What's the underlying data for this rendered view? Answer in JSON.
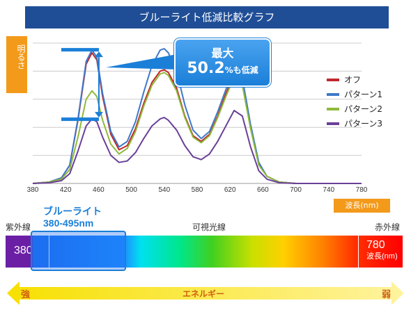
{
  "title": "ブルーライト低減比較グラフ",
  "yaxis_label": "明るさ",
  "callout": {
    "line1": "最大",
    "value": "50.2",
    "suffix": "%も低減"
  },
  "xunit": "波長(nm)",
  "spectrum": {
    "left_label": "紫外線",
    "mid_label": "可視光線",
    "right_label": "赤外線",
    "start": "380",
    "end": "780",
    "end_unit": "波長(nm)",
    "blue_title_1": "ブルーライト",
    "blue_title_2": "380-495nm"
  },
  "energy": {
    "strong": "強",
    "label": "エネルギー",
    "weak": "弱"
  },
  "colors": {
    "title_bg": "#1f4e96",
    "accent": "#f39a1b",
    "callout": "#1b7fd8"
  },
  "chart_data": {
    "type": "line",
    "title": "ブルーライト低減比較グラフ",
    "xlabel": "波長(nm)",
    "ylabel": "明るさ",
    "xlim": [
      380,
      780
    ],
    "ylim": [
      0,
      1
    ],
    "grid": true,
    "legend_placement": "right",
    "x_ticks": [
      380,
      420,
      460,
      500,
      540,
      580,
      620,
      660,
      700,
      740,
      780
    ],
    "series": [
      {
        "name": "オフ",
        "color": "#c0282d",
        "x": [
          380,
          400,
          415,
          425,
          435,
          445,
          452,
          458,
          465,
          475,
          485,
          495,
          505,
          515,
          525,
          535,
          540,
          545,
          555,
          565,
          575,
          585,
          595,
          605,
          615,
          625,
          635,
          645,
          655,
          665,
          680,
          700,
          720,
          740,
          760,
          780
        ],
        "y": [
          0,
          0.01,
          0.04,
          0.13,
          0.45,
          0.85,
          0.93,
          0.88,
          0.62,
          0.35,
          0.24,
          0.27,
          0.39,
          0.57,
          0.72,
          0.8,
          0.81,
          0.79,
          0.68,
          0.48,
          0.34,
          0.3,
          0.35,
          0.48,
          0.64,
          0.78,
          0.72,
          0.4,
          0.14,
          0.05,
          0.01,
          0,
          0,
          0,
          0,
          0
        ]
      },
      {
        "name": "パターン1",
        "color": "#3f78c8",
        "x": [
          380,
          400,
          415,
          425,
          435,
          445,
          452,
          458,
          465,
          475,
          485,
          495,
          505,
          515,
          525,
          535,
          540,
          545,
          555,
          565,
          575,
          585,
          595,
          605,
          615,
          625,
          635,
          645,
          655,
          665,
          680,
          700,
          720,
          740,
          760,
          780
        ],
        "y": [
          0,
          0.01,
          0.04,
          0.13,
          0.46,
          0.87,
          0.95,
          0.9,
          0.64,
          0.37,
          0.26,
          0.3,
          0.44,
          0.65,
          0.84,
          0.95,
          0.96,
          0.93,
          0.8,
          0.56,
          0.38,
          0.32,
          0.37,
          0.51,
          0.67,
          0.81,
          0.75,
          0.42,
          0.15,
          0.05,
          0.01,
          0,
          0,
          0,
          0,
          0
        ]
      },
      {
        "name": "パターン2",
        "color": "#8fba3a",
        "x": [
          380,
          400,
          415,
          425,
          435,
          445,
          452,
          458,
          465,
          475,
          485,
          495,
          505,
          515,
          525,
          535,
          540,
          545,
          555,
          565,
          575,
          585,
          595,
          605,
          615,
          625,
          635,
          645,
          655,
          665,
          680,
          700,
          720,
          740,
          760,
          780
        ],
        "y": [
          0,
          0.01,
          0.03,
          0.1,
          0.33,
          0.6,
          0.66,
          0.62,
          0.45,
          0.28,
          0.21,
          0.25,
          0.37,
          0.55,
          0.7,
          0.78,
          0.79,
          0.77,
          0.66,
          0.47,
          0.33,
          0.29,
          0.34,
          0.47,
          0.62,
          0.76,
          0.7,
          0.39,
          0.13,
          0.05,
          0.01,
          0,
          0,
          0,
          0,
          0
        ]
      },
      {
        "name": "パターン3",
        "color": "#6a3f98",
        "x": [
          380,
          400,
          415,
          425,
          435,
          445,
          452,
          458,
          465,
          475,
          485,
          495,
          505,
          515,
          525,
          535,
          540,
          545,
          555,
          565,
          575,
          585,
          595,
          605,
          615,
          625,
          635,
          645,
          655,
          665,
          680,
          700,
          720,
          740,
          760,
          780
        ],
        "y": [
          0,
          0.005,
          0.02,
          0.07,
          0.23,
          0.41,
          0.46,
          0.44,
          0.33,
          0.2,
          0.15,
          0.16,
          0.22,
          0.32,
          0.41,
          0.46,
          0.47,
          0.45,
          0.38,
          0.27,
          0.19,
          0.17,
          0.21,
          0.3,
          0.41,
          0.52,
          0.48,
          0.26,
          0.09,
          0.03,
          0.005,
          0,
          0,
          0,
          0,
          0
        ]
      }
    ]
  }
}
